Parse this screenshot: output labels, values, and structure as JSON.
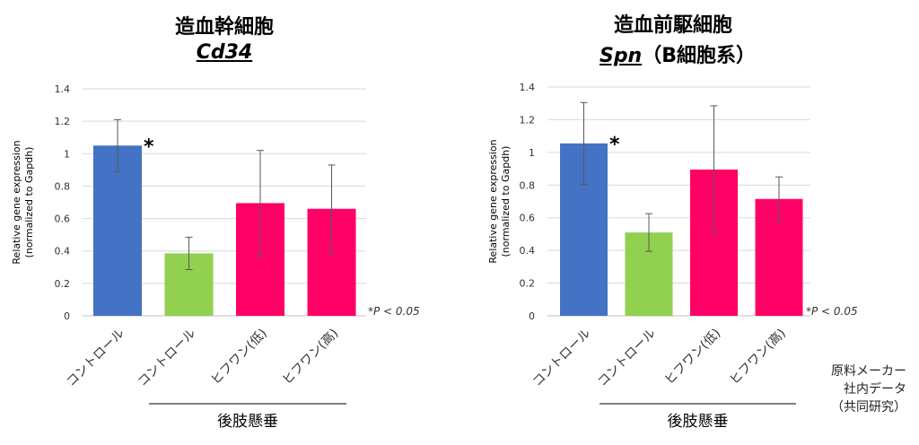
{
  "chart_data": [
    {
      "type": "bar",
      "title": "造血幹細胞",
      "gene": "Cd34",
      "gene_suffix": "",
      "ylabel_line1": "Relative gene expression",
      "ylabel_line2": "(normalized to Gapdh)",
      "ylim": [
        0,
        1.4
      ],
      "yticks": [
        "0",
        "0.2",
        "0.4",
        "0.6",
        "0.8",
        "1",
        "1.2",
        "1.4"
      ],
      "categories": [
        "コントロール",
        "コントロール",
        "ヒフワン(低)",
        "ヒフワン(高)"
      ],
      "values": [
        1.05,
        0.385,
        0.695,
        0.66
      ],
      "errors": [
        0.16,
        0.1,
        0.325,
        0.27
      ],
      "colors": [
        "#4472c4",
        "#92d050",
        "#ff0066",
        "#ff0066"
      ],
      "asterisk": "*",
      "significance_note": "*P < 0.05",
      "group_label": "後肢懸垂",
      "grid": true
    },
    {
      "type": "bar",
      "title": "造血前駆細胞",
      "gene": "Spn",
      "gene_suffix": "（B細胞系）",
      "ylabel_line1": "Relative gene expression",
      "ylabel_line2": "(normalized to Gapdh)",
      "ylim": [
        0,
        1.4
      ],
      "yticks": [
        "0",
        "0.2",
        "0.4",
        "0.6",
        "0.8",
        "1",
        "1.2",
        "1.4"
      ],
      "categories": [
        "コントロール",
        "コントロール",
        "ヒフワン(低)",
        "ヒフワン(高)"
      ],
      "values": [
        1.055,
        0.51,
        0.895,
        0.715
      ],
      "errors": [
        0.25,
        0.115,
        0.39,
        0.135
      ],
      "colors": [
        "#4472c4",
        "#92d050",
        "#ff0066",
        "#ff0066"
      ],
      "asterisk": "*",
      "significance_note": "*P < 0.05",
      "group_label": "後肢懸垂",
      "grid": true
    }
  ],
  "footer": {
    "line1": "原料メーカー",
    "line2": "社内データ",
    "line3": "（共同研究）"
  }
}
